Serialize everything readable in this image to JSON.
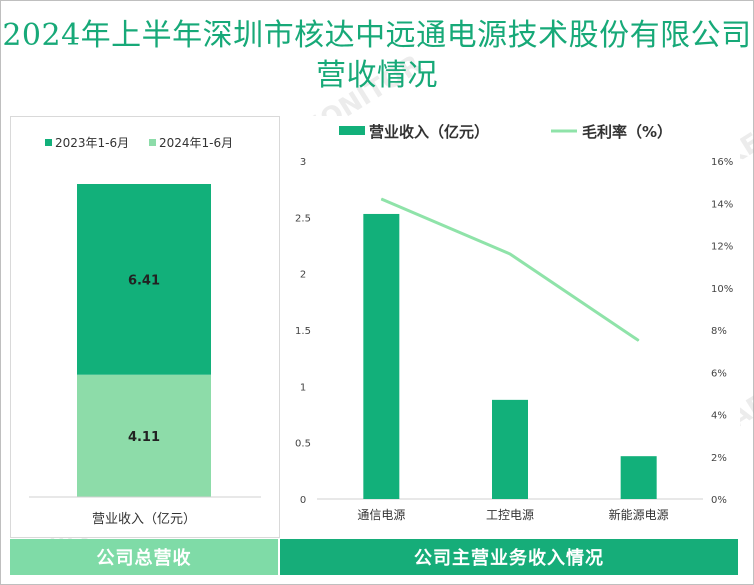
{
  "title": "2024年上半年深圳市核达中远通电源技术股份有限公司营收情况",
  "colors": {
    "dark_green": "#12b07a",
    "light_green": "#8ddca9",
    "line_green": "#8fe3a9",
    "title_green": "#17a978"
  },
  "watermark": "贝哲斯咨询 MARKET MONITOR",
  "chart_data": [
    {
      "type": "stacked-bar",
      "title": "",
      "legend": [
        "2023年1-6月",
        "2024年1-6月"
      ],
      "legend_position": "top",
      "categories": [
        "营业收入（亿元）"
      ],
      "series": [
        {
          "name": "2023年1-6月",
          "values": [
            6.41
          ],
          "labels": [
            "6.41"
          ]
        },
        {
          "name": "2024年1-6月",
          "values": [
            4.11
          ],
          "labels": [
            "4.11"
          ]
        }
      ],
      "xlabel": "营业收入（亿元）"
    },
    {
      "type": "bar+line",
      "legend": [
        "营业收入（亿元）",
        "毛利率（%）"
      ],
      "legend_position": "top",
      "categories": [
        "通信电源",
        "工控电源",
        "新能源电源"
      ],
      "series": [
        {
          "name": "营业收入（亿元）",
          "type": "bar",
          "axis": "left",
          "values": [
            2.53,
            0.88,
            0.38
          ]
        },
        {
          "name": "毛利率（%）",
          "type": "line",
          "axis": "right",
          "values": [
            14.2,
            11.6,
            7.5
          ]
        }
      ],
      "ylim_left": [
        0,
        3
      ],
      "yticks_left": [
        "0",
        "0.5",
        "1",
        "1.5",
        "2",
        "2.5",
        "3"
      ],
      "ylim_right": [
        0,
        16
      ],
      "yticks_right": [
        "0%",
        "2%",
        "4%",
        "6%",
        "8%",
        "10%",
        "12%",
        "14%",
        "16%"
      ]
    }
  ],
  "footer": {
    "left": "公司总营收",
    "right": "公司主营业务收入情况"
  }
}
